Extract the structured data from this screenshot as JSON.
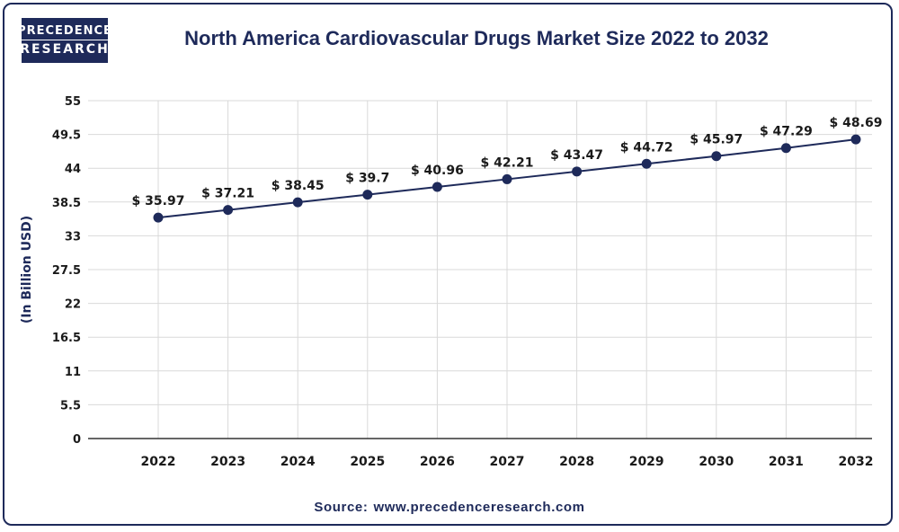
{
  "logo": {
    "line1": "PRECEDENCE",
    "line2": "RESEARCH"
  },
  "title": "North America Cardiovascular Drugs Market Size 2022 to 2032",
  "source": {
    "label": "Source:",
    "url": "www.precedenceresearch.com"
  },
  "colors": {
    "navy": "#1e2a5a",
    "grid": "#d9d9d9"
  },
  "chart_data": {
    "type": "line",
    "title": "North America Cardiovascular Drugs Market Size 2022 to 2032",
    "xlabel": "",
    "ylabel": "(In Billion USD)",
    "ylim": [
      0,
      55
    ],
    "yticks": [
      0,
      5.5,
      11,
      16.5,
      22,
      27.5,
      33,
      38.5,
      44,
      49.5,
      55
    ],
    "grid": true,
    "categories": [
      "2022",
      "2023",
      "2024",
      "2025",
      "2026",
      "2027",
      "2028",
      "2029",
      "2030",
      "2031",
      "2032"
    ],
    "series": [
      {
        "values": [
          35.97,
          37.21,
          38.45,
          39.7,
          40.96,
          42.21,
          43.47,
          44.72,
          45.97,
          47.29,
          48.69
        ],
        "labels": [
          "$ 35.97",
          "$ 37.21",
          "$ 38.45",
          "$ 39.7",
          "$ 40.96",
          "$ 42.21",
          "$ 43.47",
          "$ 44.72",
          "$ 45.97",
          "$ 47.29",
          "$ 48.69"
        ]
      }
    ]
  }
}
